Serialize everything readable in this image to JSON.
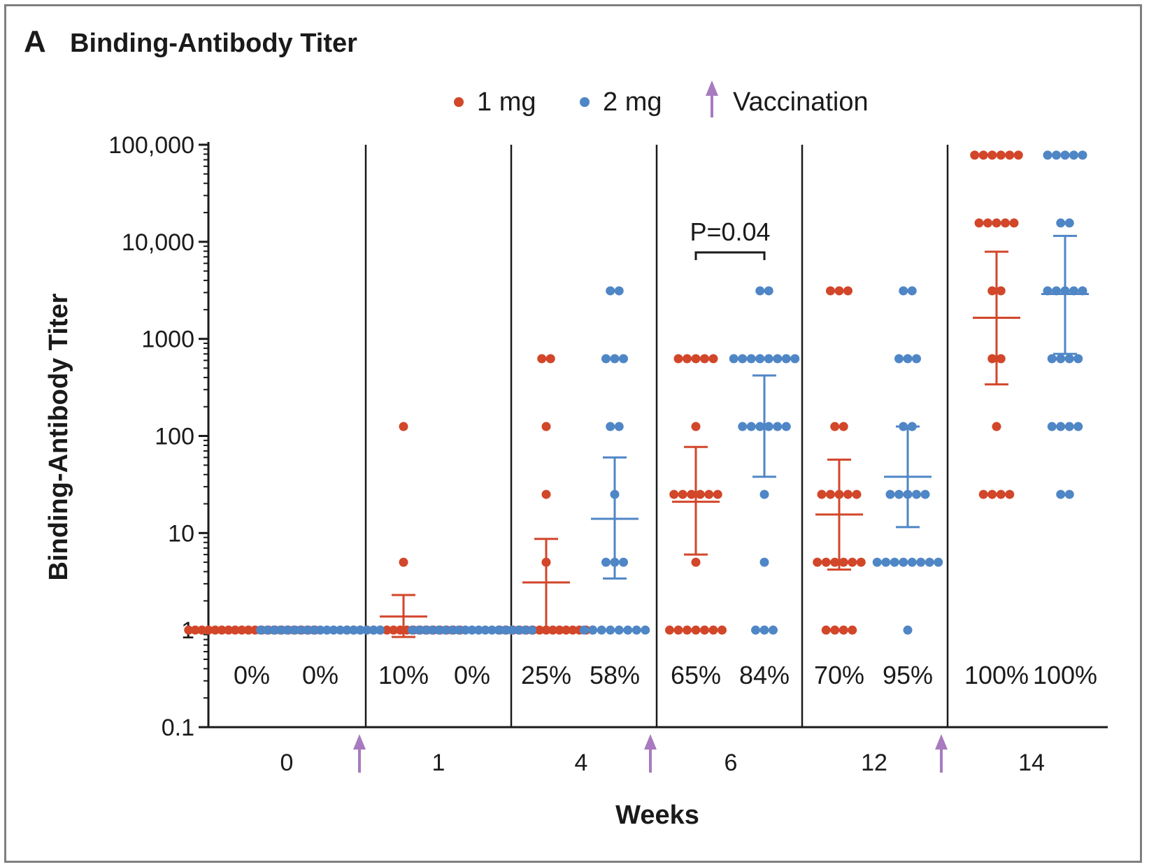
{
  "panel": {
    "letter": "A",
    "title": "Binding-Antibody Titer"
  },
  "legend": [
    {
      "label": "1 mg",
      "color": "#d2462a"
    },
    {
      "label": "2 mg",
      "color": "#4f86c6"
    },
    {
      "label": "Vaccination",
      "color": "#a87ac0",
      "icon": "up-arrow-icon"
    }
  ],
  "chart_data": {
    "type": "scatter",
    "title": "Binding-Antibody Titer",
    "xlabel": "Weeks",
    "ylabel": "Binding-Antibody Titer",
    "yscale": "log",
    "ylim": [
      0.1,
      100000
    ],
    "yticks": [
      {
        "value": 0.1,
        "label": "0.1"
      },
      {
        "value": 1,
        "label": "1"
      },
      {
        "value": 10,
        "label": "10"
      },
      {
        "value": 100,
        "label": "100"
      },
      {
        "value": 1000,
        "label": "1000"
      },
      {
        "value": 10000,
        "label": "10,000"
      },
      {
        "value": 100000,
        "label": "100,000"
      }
    ],
    "categories": [
      "0",
      "1",
      "4",
      "6",
      "12",
      "14"
    ],
    "vaccination_between": [
      [
        "0",
        "1"
      ],
      [
        "4",
        "6"
      ],
      [
        "12",
        "14"
      ]
    ],
    "annotation": {
      "label": "P=0.04",
      "week": "6",
      "between": [
        "1 mg",
        "2 mg"
      ]
    },
    "series": [
      {
        "name": "1 mg",
        "color": "#d2462a",
        "groups": [
          {
            "week": "0",
            "responder_pct": "0%",
            "gmt": null,
            "ci": null,
            "points": [
              [
                1,
                20
              ]
            ]
          },
          {
            "week": "1",
            "responder_pct": "10%",
            "gmt": 1.38,
            "ci": [
              0.85,
              2.3
            ],
            "points": [
              [
                125,
                1
              ],
              [
                5,
                1
              ],
              [
                1,
                18
              ]
            ]
          },
          {
            "week": "4",
            "responder_pct": "25%",
            "gmt": 3.1,
            "ci": [
              1.05,
              8.7
            ],
            "points": [
              [
                625,
                2
              ],
              [
                125,
                1
              ],
              [
                25,
                1
              ],
              [
                5,
                1
              ],
              [
                1,
                15
              ]
            ]
          },
          {
            "week": "6",
            "responder_pct": "65%",
            "gmt": 21,
            "ci": [
              6,
              77
            ],
            "points": [
              [
                625,
                5
              ],
              [
                125,
                1
              ],
              [
                25,
                6
              ],
              [
                5,
                1
              ],
              [
                1,
                7
              ]
            ]
          },
          {
            "week": "12",
            "responder_pct": "70%",
            "gmt": 15.5,
            "ci": [
              4.2,
              57
            ],
            "points": [
              [
                3125,
                3
              ],
              [
                125,
                2
              ],
              [
                25,
                5
              ],
              [
                5,
                6
              ],
              [
                1,
                4
              ]
            ]
          },
          {
            "week": "14",
            "responder_pct": "100%",
            "gmt": 1650,
            "ci": [
              340,
              7900
            ],
            "points": [
              [
                78125,
                6
              ],
              [
                15625,
                5
              ],
              [
                3125,
                2
              ],
              [
                625,
                2
              ],
              [
                125,
                1
              ],
              [
                25,
                4
              ]
            ]
          }
        ]
      },
      {
        "name": "2 mg",
        "color": "#4f86c6",
        "groups": [
          {
            "week": "0",
            "responder_pct": "0%",
            "gmt": null,
            "ci": null,
            "points": [
              [
                1,
                19
              ]
            ]
          },
          {
            "week": "1",
            "responder_pct": "0%",
            "gmt": null,
            "ci": null,
            "points": [
              [
                1,
                19
              ]
            ]
          },
          {
            "week": "4",
            "responder_pct": "58%",
            "gmt": 14,
            "ci": [
              3.4,
              60
            ],
            "points": [
              [
                3125,
                2
              ],
              [
                625,
                3
              ],
              [
                125,
                2
              ],
              [
                25,
                1
              ],
              [
                5,
                3
              ],
              [
                1,
                8
              ]
            ]
          },
          {
            "week": "6",
            "responder_pct": "84%",
            "gmt": 125,
            "ci": [
              38,
              420
            ],
            "points": [
              [
                3125,
                2
              ],
              [
                625,
                8
              ],
              [
                125,
                6
              ],
              [
                25,
                1
              ],
              [
                5,
                1
              ],
              [
                1,
                3
              ]
            ]
          },
          {
            "week": "12",
            "responder_pct": "95%",
            "gmt": 38,
            "ci": [
              11.5,
              125
            ],
            "points": [
              [
                3125,
                2
              ],
              [
                625,
                3
              ],
              [
                125,
                2
              ],
              [
                25,
                5
              ],
              [
                5,
                8
              ],
              [
                1,
                1
              ]
            ]
          },
          {
            "week": "14",
            "responder_pct": "100%",
            "gmt": 2900,
            "ci": [
              700,
              11500
            ],
            "points": [
              [
                78125,
                5
              ],
              [
                15625,
                2
              ],
              [
                3125,
                5
              ],
              [
                625,
                4
              ],
              [
                125,
                4
              ],
              [
                25,
                2
              ]
            ]
          }
        ]
      }
    ]
  }
}
